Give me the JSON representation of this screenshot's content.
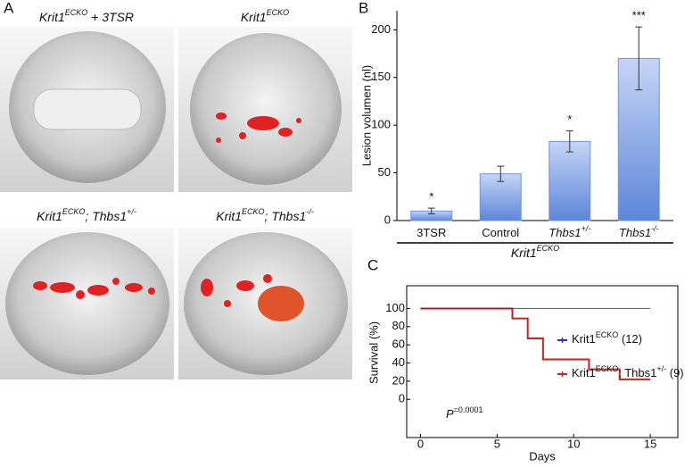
{
  "panel_labels": [
    "A",
    "B",
    "C"
  ],
  "images": [
    {
      "parts": [
        "Krit1",
        "ECKO",
        " + 3TSR"
      ]
    },
    {
      "parts": [
        "Krit1",
        "ECKO"
      ]
    },
    {
      "parts": [
        "Krit1",
        "ECKO",
        "; Thbs1",
        "+/-"
      ]
    },
    {
      "parts": [
        "Krit1",
        "ECKO",
        "; Thbs1",
        "-/-"
      ]
    }
  ],
  "chart_data": [
    {
      "type": "bar",
      "ylabel": "Lesion volumen (nl)",
      "categories": [
        "3TSR",
        "Control",
        "Thbs1",
        "Thbs1"
      ],
      "category_superscripts": [
        null,
        null,
        "+/-",
        "-/-"
      ],
      "values": [
        10,
        49,
        83,
        170
      ],
      "errors": [
        3,
        8,
        11,
        33
      ],
      "significance": [
        "*",
        null,
        "*",
        "***"
      ],
      "group_label_parts": [
        "Krit1",
        "ECKO"
      ],
      "color": "#6f95df",
      "ylim": [
        0,
        220
      ],
      "yticks": [
        0,
        50,
        100,
        150,
        200
      ]
    },
    {
      "type": "line",
      "xlabel": "Days",
      "ylabel": "Survival (%)",
      "annotation_parts": [
        "P",
        "=0.0001"
      ],
      "series": [
        {
          "name_parts": [
            "Krit1",
            "ECKO",
            " (12)"
          ],
          "color": "#2b2bd0",
          "x": [
            0,
            15
          ],
          "values": [
            100,
            100
          ]
        },
        {
          "name_parts": [
            "Krit1",
            "ECKO",
            "; Thbs1",
            "+/-",
            " (9)"
          ],
          "color": "#d21f1f",
          "x": [
            0,
            6,
            6,
            7,
            7,
            8,
            8,
            11,
            11,
            13,
            13,
            15
          ],
          "values": [
            100,
            100,
            89,
            89,
            67,
            67,
            44,
            44,
            33,
            33,
            22,
            22
          ]
        }
      ],
      "xlim": [
        -0.9,
        16.8
      ],
      "xticks": [
        0,
        5,
        10,
        15
      ],
      "ylim": [
        -42,
        125
      ],
      "yticks": [
        0,
        20,
        40,
        60,
        80,
        100
      ]
    }
  ]
}
